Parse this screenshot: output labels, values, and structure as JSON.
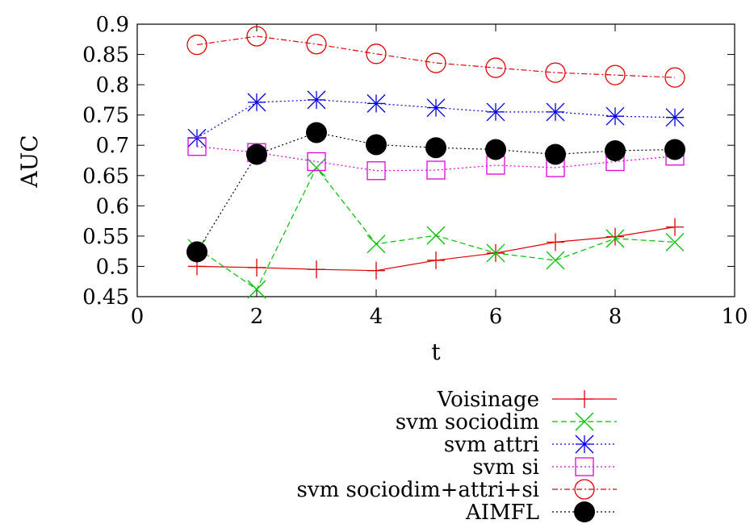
{
  "chart_data": {
    "type": "line",
    "title": "",
    "xlabel": "t",
    "ylabel": "AUC",
    "xlim": [
      0,
      10
    ],
    "ylim": [
      0.45,
      0.9
    ],
    "xticks": [
      0,
      2,
      4,
      6,
      8,
      10
    ],
    "yticks": [
      0.45,
      0.5,
      0.55,
      0.6,
      0.65,
      0.7,
      0.75,
      0.8,
      0.85,
      0.9
    ],
    "xtick_labels": [
      "0",
      "2",
      "4",
      "6",
      "8",
      "10"
    ],
    "ytick_labels": [
      "0.45",
      "0.5",
      "0.55",
      "0.6",
      "0.65",
      "0.7",
      "0.75",
      "0.8",
      "0.85",
      "0.9"
    ],
    "grid": false,
    "legend_position": "below",
    "x": [
      1,
      2,
      3,
      4,
      5,
      6,
      7,
      8,
      9
    ],
    "series": [
      {
        "name": "Voisinage",
        "color": "#e00000",
        "marker": "plus",
        "dash": "solid",
        "values": [
          0.5,
          0.498,
          0.495,
          0.493,
          0.51,
          0.522,
          0.54,
          0.549,
          0.565
        ]
      },
      {
        "name": "svm sociodim",
        "color": "#00c000",
        "marker": "cross",
        "dash": "dashed",
        "values": [
          0.53,
          0.462,
          0.663,
          0.537,
          0.551,
          0.522,
          0.51,
          0.546,
          0.54
        ]
      },
      {
        "name": "svm attri",
        "color": "#0000e0",
        "marker": "star",
        "dash": "dotted",
        "values": [
          0.712,
          0.771,
          0.775,
          0.769,
          0.762,
          0.755,
          0.755,
          0.748,
          0.746
        ]
      },
      {
        "name": "svm si",
        "color": "#e000e0",
        "marker": "square",
        "dash": "dotted",
        "values": [
          0.698,
          0.688,
          0.673,
          0.658,
          0.659,
          0.667,
          0.663,
          0.673,
          0.682
        ]
      },
      {
        "name": "svm sociodim+attri+si",
        "color": "#e00000",
        "marker": "circle",
        "dash": "dashdot",
        "values": [
          0.866,
          0.88,
          0.867,
          0.851,
          0.836,
          0.828,
          0.82,
          0.816,
          0.812
        ]
      },
      {
        "name": "AIMFL",
        "color": "#000000",
        "marker": "dot",
        "dash": "dotted",
        "values": [
          0.524,
          0.685,
          0.721,
          0.701,
          0.696,
          0.693,
          0.685,
          0.691,
          0.693
        ]
      }
    ]
  }
}
